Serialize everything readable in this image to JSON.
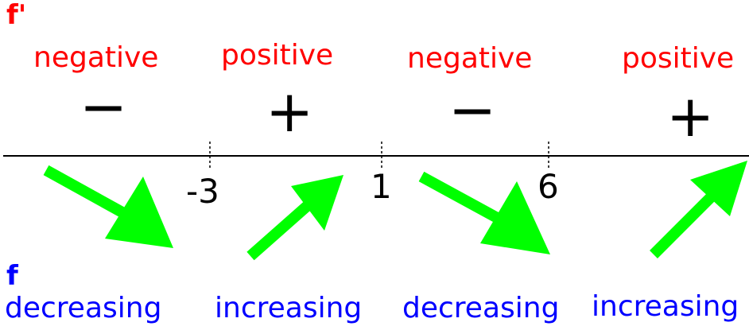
{
  "f_prime_label": "f'",
  "f_label": "f",
  "colors": {
    "sign": "#ff0000",
    "behavior": "#0000ff",
    "arrow": "#00ff00",
    "line": "#000000"
  },
  "critical_points": [
    "-3",
    "1",
    "6"
  ],
  "intervals": [
    {
      "sign_word": "negative",
      "sign_symbol": "−",
      "arrow": "down-arrow-icon",
      "behavior": "decreasing"
    },
    {
      "sign_word": "positive",
      "sign_symbol": "+",
      "arrow": "up-arrow-icon",
      "behavior": "increasing"
    },
    {
      "sign_word": "negative",
      "sign_symbol": "−",
      "arrow": "down-arrow-icon",
      "behavior": "decreasing"
    },
    {
      "sign_word": "positive",
      "sign_symbol": "+",
      "arrow": "up-arrow-icon",
      "behavior": "increasing"
    }
  ]
}
